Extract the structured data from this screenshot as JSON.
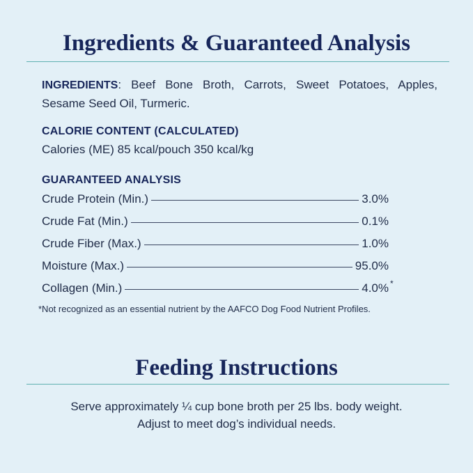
{
  "header": {
    "title": "Ingredients & Guaranteed Analysis"
  },
  "ingredients": {
    "label": "INGREDIENTS",
    "text": ": Beef Bone Broth, Carrots, Sweet Potatoes, Apples, Sesame Seed Oil, Turmeric."
  },
  "calorie": {
    "label": "CALORIE CONTENT (CALCULATED)",
    "text": "Calories (ME) 85 kcal/pouch  350 kcal/kg"
  },
  "analysis": {
    "label": "GUARANTEED ANALYSIS",
    "rows": [
      {
        "name": "Crude Protein (Min.)",
        "value": "3.0%"
      },
      {
        "name": "Crude Fat (Min.)",
        "value": "0.1%"
      },
      {
        "name": "Crude Fiber (Max.)",
        "value": "1.0%"
      },
      {
        "name": "Moisture (Max.)",
        "value": "95.0%"
      },
      {
        "name": "Collagen (Min.)",
        "value": "4.0%",
        "note": "*"
      }
    ],
    "footnote": "*Not recognized as an essential nutrient by the AAFCO Dog Food Nutrient Profiles."
  },
  "feeding": {
    "title": "Feeding Instructions",
    "lines": [
      "Serve approximately ¼ cup bone broth per 25 lbs. body weight.",
      "Adjust to meet dog’s individual needs."
    ]
  }
}
